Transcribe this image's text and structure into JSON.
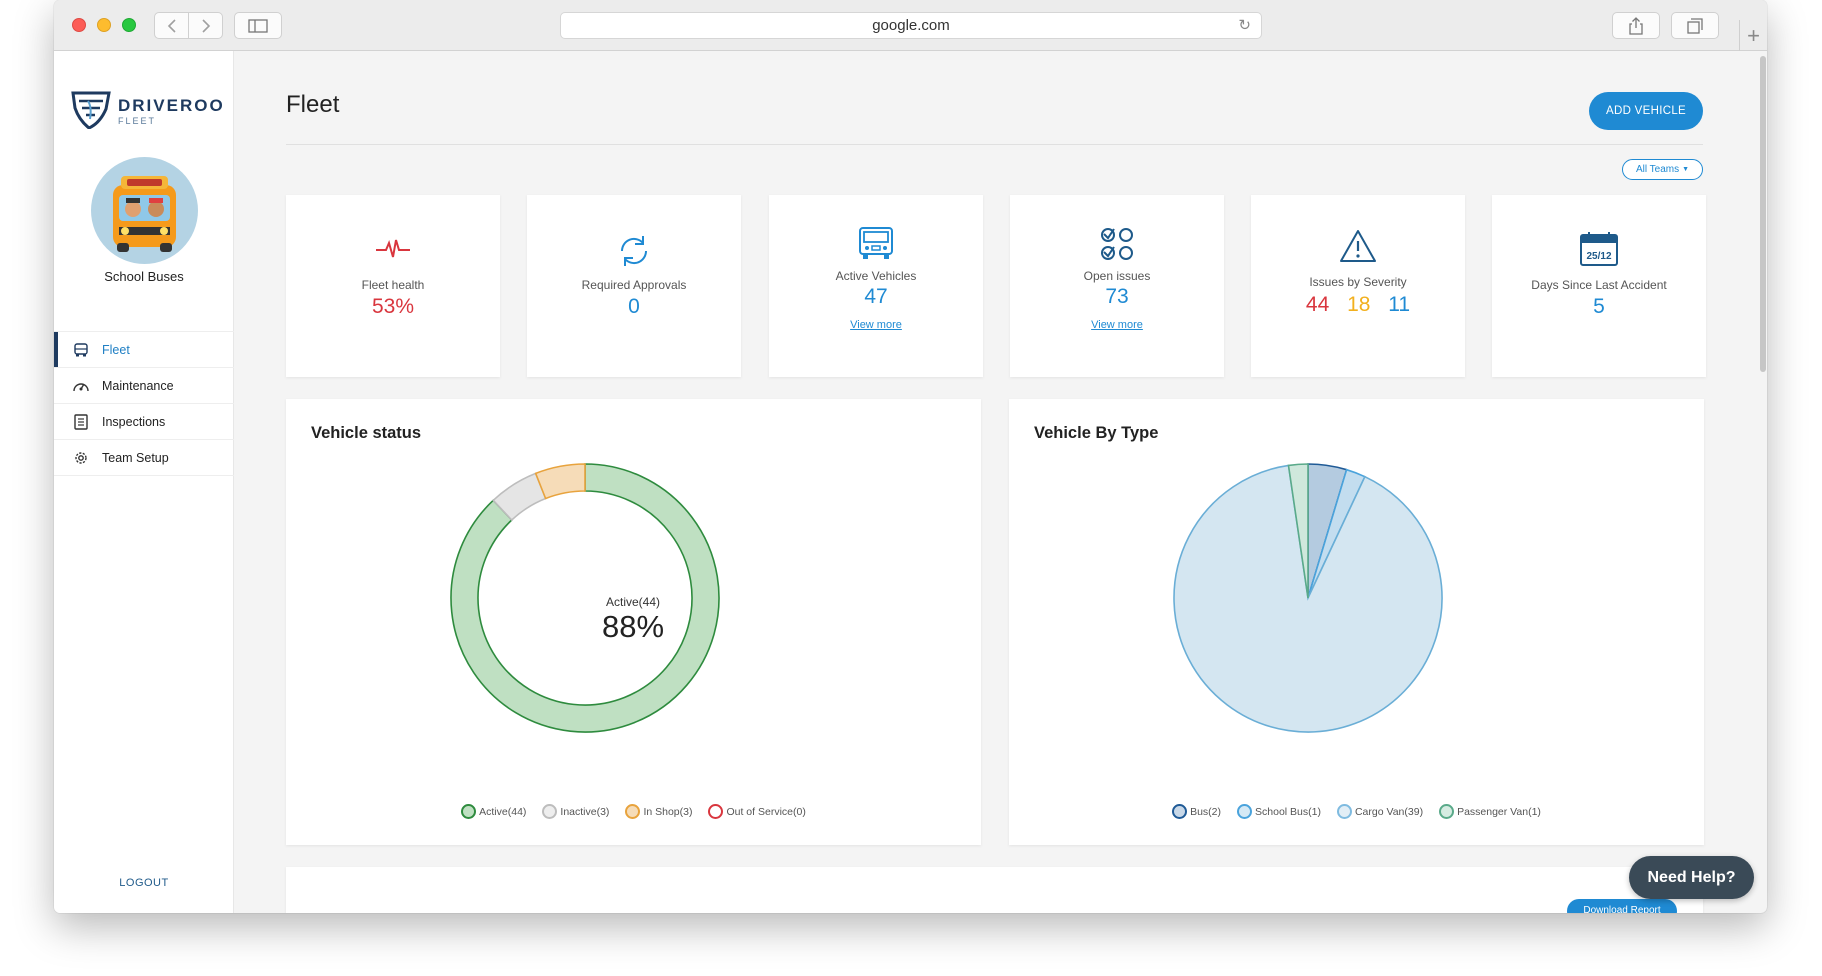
{
  "browser": {
    "url": "google.com"
  },
  "brand": {
    "name": "DRIVEROO",
    "sub": "FLEET"
  },
  "team": {
    "name": "School Buses"
  },
  "nav": {
    "items": [
      {
        "label": "Fleet",
        "icon": "bus-icon",
        "active": true
      },
      {
        "label": "Maintenance",
        "icon": "gauge-icon",
        "active": false
      },
      {
        "label": "Inspections",
        "icon": "checklist-icon",
        "active": false
      },
      {
        "label": "Team Setup",
        "icon": "gear-icon",
        "active": false
      }
    ],
    "logout": "LOGOUT"
  },
  "header": {
    "title": "Fleet",
    "add_vehicle": "ADD VEHICLE",
    "teams_filter": "All Teams"
  },
  "cards": {
    "fleet_health": {
      "label": "Fleet health",
      "value": "53%"
    },
    "approvals": {
      "label": "Required Approvals",
      "value": "0"
    },
    "active": {
      "label": "Active Vehicles",
      "value": "47",
      "link": "View more"
    },
    "open_issues": {
      "label": "Open issues",
      "value": "73",
      "link": "View more"
    },
    "severity": {
      "label": "Issues by Severity",
      "high": "44",
      "medium": "18",
      "low": "11"
    },
    "accident": {
      "label": "Days Since Last Accident",
      "value": "5",
      "calendar_text": "25/12"
    }
  },
  "colors": {
    "accent": "#1f8ad3",
    "danger": "#d9363e",
    "warning": "#f2b01e",
    "active_green": "#2e8b3e",
    "active_fill": "#bfe0c2",
    "inactive": "#bdbdbd",
    "inshop": "#e8a33d",
    "out_of_service": "#d9363e"
  },
  "vehicle_status": {
    "title": "Vehicle status",
    "center_label": "Active(44)",
    "center_value": "88%",
    "legend": [
      "Active(44)",
      "Inactive(3)",
      "In Shop(3)",
      "Out of Service(0)"
    ]
  },
  "vehicle_type": {
    "title": "Vehicle By Type",
    "legend": [
      "Bus(2)",
      "School Bus(1)",
      "Cargo Van(39)",
      "Passenger Van(1)"
    ]
  },
  "chart_data": [
    {
      "type": "pie",
      "variant": "doughnut",
      "title": "Vehicle status",
      "categories": [
        "Active",
        "Inactive",
        "In Shop",
        "Out of Service"
      ],
      "values": [
        44,
        3,
        3,
        0
      ],
      "colors": [
        "#bfe0c2",
        "#e5e5e5",
        "#f6dcb8",
        "#f3c5c7"
      ],
      "strokes": [
        "#2e8b3e",
        "#bdbdbd",
        "#e8a33d",
        "#d9363e"
      ],
      "legend_position": "bottom"
    },
    {
      "type": "pie",
      "title": "Vehicle By Type",
      "categories": [
        "Bus",
        "School Bus",
        "Cargo Van",
        "Passenger Van"
      ],
      "values": [
        2,
        1,
        39,
        1
      ],
      "colors": [
        "#b4cbe0",
        "#c3ddef",
        "#d4e6f1",
        "#cfe8dc"
      ],
      "strokes": [
        "#1f5a96",
        "#4aa3dc",
        "#6aaed6",
        "#5aaa8a"
      ],
      "legend_position": "bottom"
    }
  ],
  "bottom": {
    "download": "Download Report"
  },
  "help": {
    "label": "Need Help?"
  }
}
